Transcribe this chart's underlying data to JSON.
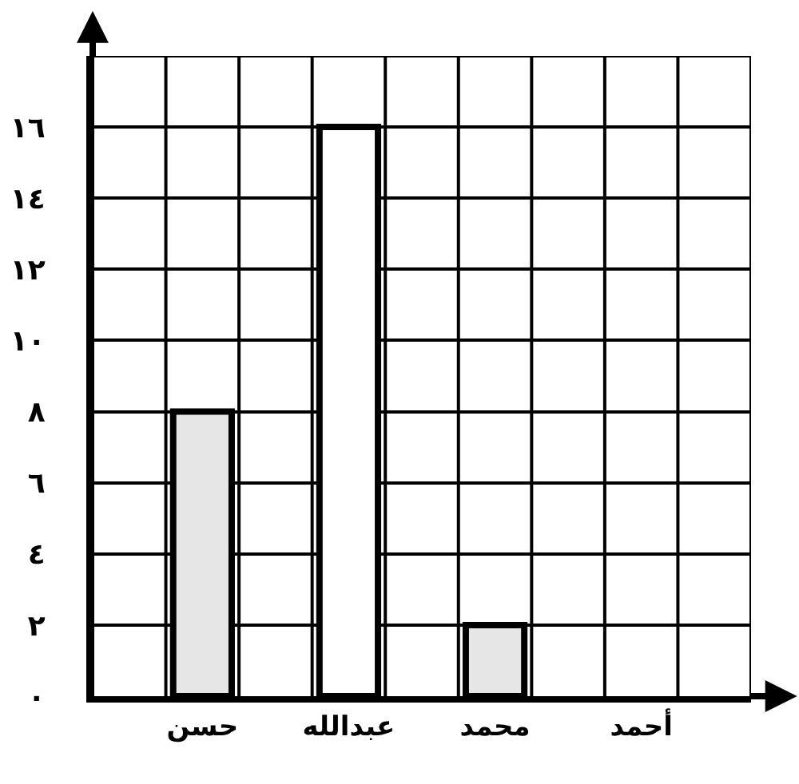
{
  "chart_data": {
    "type": "bar",
    "categories": [
      null,
      "حسن",
      null,
      "عبدالله",
      null,
      "محمد",
      null,
      "أحمد",
      null
    ],
    "values": [
      null,
      8,
      null,
      16,
      null,
      2,
      null,
      0,
      null
    ],
    "colors": [
      "#ffffff",
      "#e6e6e6",
      "#ffffff",
      "#ffffff",
      "#ffffff",
      "#e6e6e6",
      "#ffffff",
      "#ffffff",
      "#ffffff"
    ],
    "ylim": [
      0,
      18
    ],
    "yticks": [
      {
        "value": 0,
        "label": "٠"
      },
      {
        "value": 2,
        "label": "٢"
      },
      {
        "value": 4,
        "label": "٤"
      },
      {
        "value": 6,
        "label": "٦"
      },
      {
        "value": 8,
        "label": "٨"
      },
      {
        "value": 10,
        "label": "١٠"
      },
      {
        "value": 12,
        "label": "١٢"
      },
      {
        "value": 14,
        "label": "١٤"
      },
      {
        "value": 16,
        "label": "١٦"
      }
    ],
    "grid": true
  }
}
